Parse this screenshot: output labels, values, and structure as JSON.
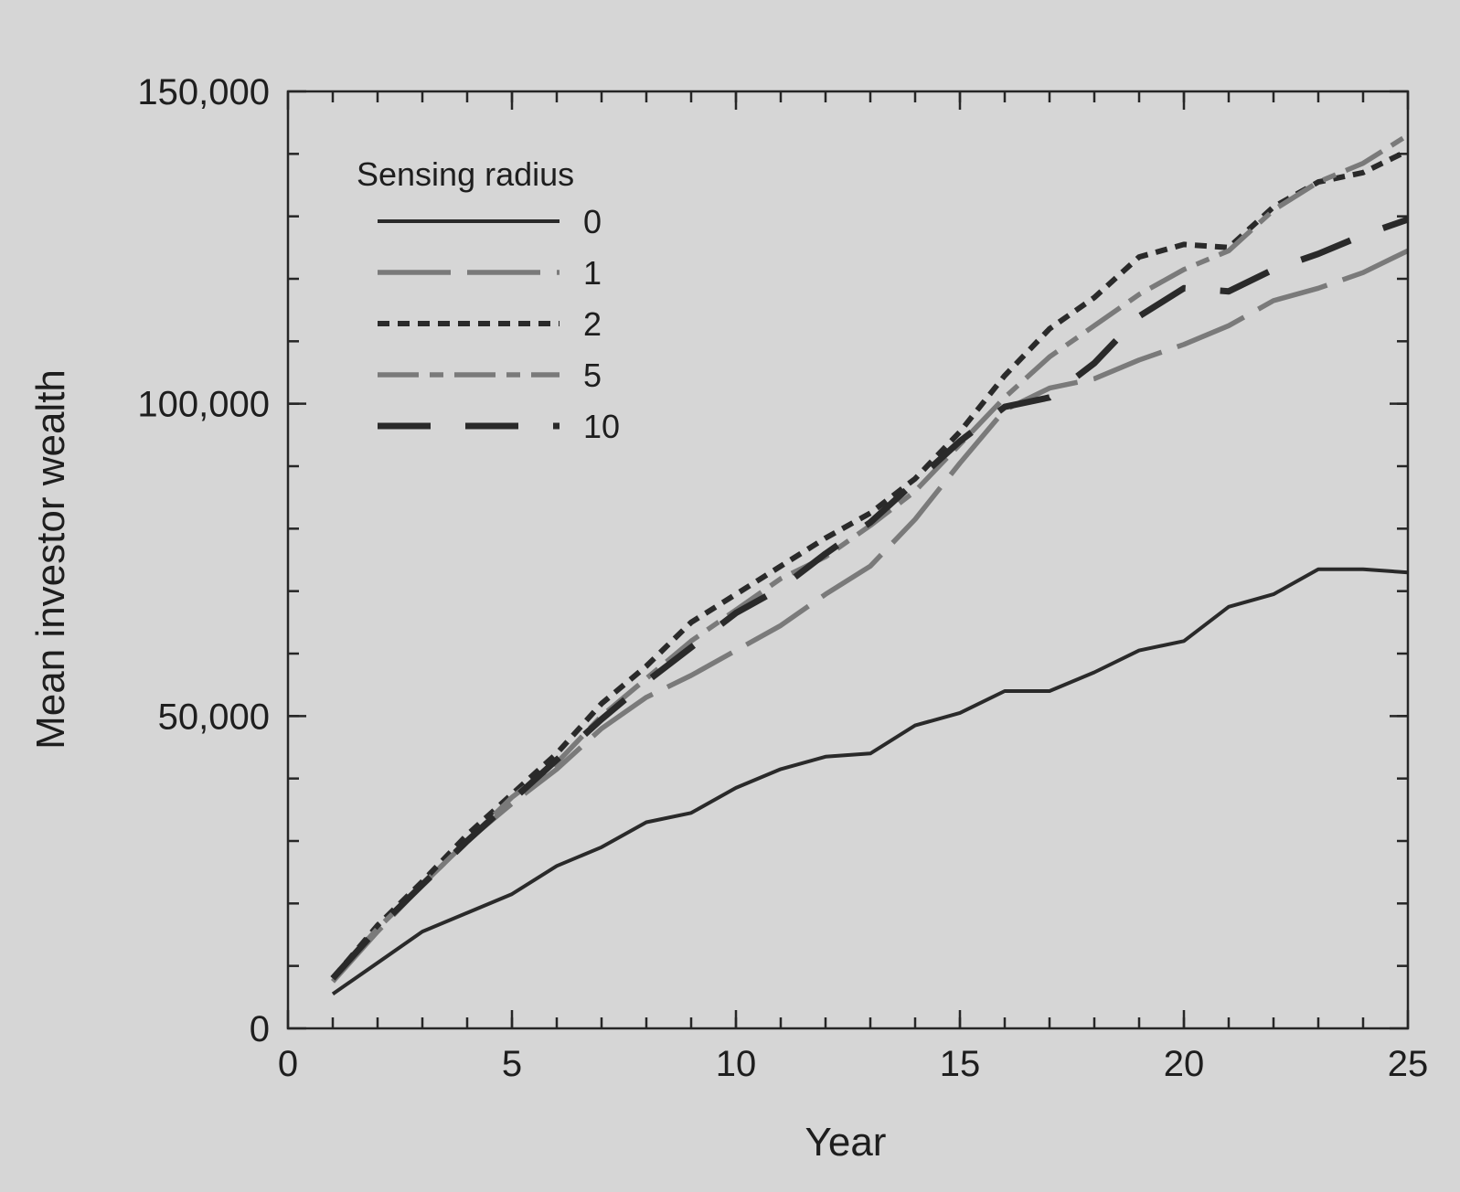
{
  "chart_data": {
    "type": "line",
    "title": "",
    "xlabel": "Year",
    "ylabel": "Mean investor wealth",
    "xlim": [
      0,
      25
    ],
    "ylim": [
      0,
      150000
    ],
    "x_ticks": [
      0,
      5,
      10,
      15,
      20,
      25
    ],
    "x_tick_labels": [
      "0",
      "5",
      "10",
      "15",
      "20",
      "25"
    ],
    "y_ticks": [
      0,
      50000,
      100000,
      150000
    ],
    "y_tick_labels": [
      "0",
      "50,000",
      "100,000",
      "150,000"
    ],
    "grid": false,
    "legend": {
      "title": "Sensing radius",
      "placement": "top-left"
    },
    "x": [
      1,
      2,
      3,
      4,
      5,
      6,
      7,
      8,
      9,
      10,
      11,
      12,
      13,
      14,
      15,
      16,
      17,
      18,
      19,
      20,
      21,
      22,
      23,
      24,
      25
    ],
    "series": [
      {
        "name": "0",
        "style": "solid",
        "color": "#2a2a2a",
        "values": [
          5500,
          10500,
          15500,
          18500,
          21500,
          26000,
          29000,
          33000,
          34500,
          38500,
          41500,
          43500,
          44000,
          48500,
          50500,
          54000,
          54000,
          57000,
          60500,
          62000,
          67500,
          69500,
          73500,
          73500,
          73000
        ]
      },
      {
        "name": "1",
        "style": "long-dash",
        "color": "#7a7a7a",
        "values": [
          7500,
          15500,
          23000,
          30000,
          36000,
          41500,
          48000,
          53000,
          56500,
          60500,
          64500,
          69500,
          74000,
          81500,
          90500,
          99000,
          102500,
          104000,
          107000,
          109500,
          112500,
          116500,
          118500,
          121000,
          124500
        ]
      },
      {
        "name": "2",
        "style": "short-dash",
        "color": "#2a2a2a",
        "values": [
          8000,
          16500,
          23500,
          31000,
          37500,
          44000,
          52000,
          58000,
          65000,
          69500,
          74000,
          78500,
          82500,
          88000,
          95500,
          104500,
          112000,
          117000,
          123500,
          125500,
          125000,
          131500,
          135500,
          137000,
          140500
        ]
      },
      {
        "name": "5",
        "style": "dash-dot",
        "color": "#7a7a7a",
        "values": [
          8000,
          16000,
          23000,
          30000,
          37000,
          42500,
          50000,
          56000,
          62000,
          67000,
          72000,
          75500,
          80500,
          86000,
          93500,
          101000,
          107500,
          112500,
          117500,
          121500,
          124500,
          131000,
          135500,
          138500,
          143000
        ]
      },
      {
        "name": "10",
        "style": "long-dash-bold",
        "color": "#2a2a2a",
        "values": [
          8000,
          16000,
          23000,
          30000,
          36500,
          43000,
          49500,
          55500,
          61000,
          66500,
          70500,
          76000,
          81000,
          87500,
          94000,
          99500,
          101000,
          106500,
          114000,
          118500,
          118000,
          121500,
          124000,
          127000,
          129500
        ]
      }
    ]
  }
}
